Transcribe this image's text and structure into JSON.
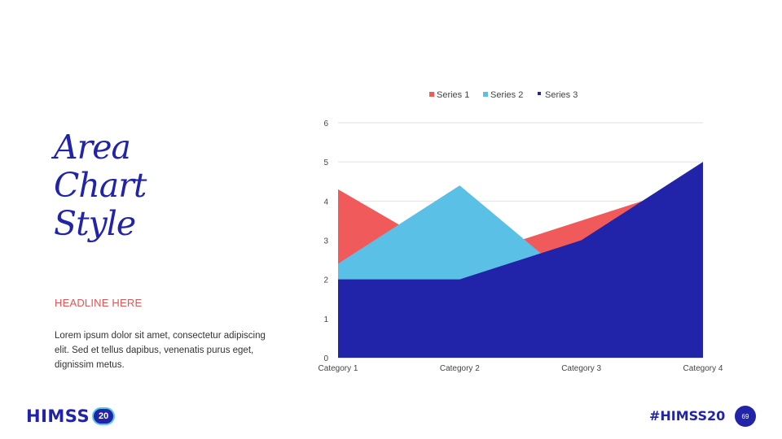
{
  "slide": {
    "title_lines": [
      "Area",
      "Chart",
      "Style"
    ],
    "headline": "HEADLINE HERE",
    "body": "Lorem ipsum dolor sit amet, consectetur adipiscing elit. Sed et tellus dapibus, venenatis purus eget, dignissim metus.",
    "logo_text": "HIMSS",
    "logo_badge": "20",
    "hashtag": "#HIMSS20",
    "page_number": "69"
  },
  "colors": {
    "series1": "#f15a5a",
    "series2": "#5bc0e6",
    "series3": "#2124a8",
    "accent": "#2124a8",
    "headline": "#e05555"
  },
  "chart_data": {
    "type": "area",
    "categories": [
      "Category 1",
      "Category 2",
      "Category 3",
      "Category 4"
    ],
    "series": [
      {
        "name": "Series 1",
        "values": [
          4.3,
          2.5,
          3.5,
          4.5
        ]
      },
      {
        "name": "Series 2",
        "values": [
          2.4,
          4.4,
          1.8,
          2.8
        ]
      },
      {
        "name": "Series 3",
        "values": [
          2,
          2,
          3,
          5
        ]
      }
    ],
    "ylim": [
      0,
      6
    ],
    "yticks": [
      "0",
      "1",
      "2",
      "3",
      "4",
      "5",
      "6"
    ],
    "grid": true,
    "legend": "top"
  }
}
